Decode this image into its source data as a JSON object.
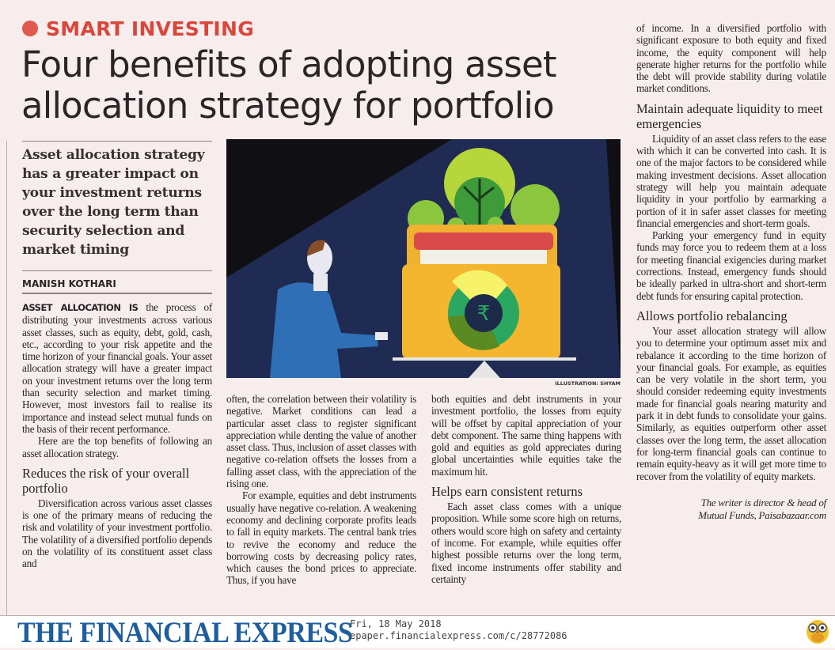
{
  "section": {
    "kicker": "SMART INVESTING",
    "accent_color": "#d9473b"
  },
  "headline": {
    "line1": "Four benefits of adopting asset",
    "line2": "allocation strategy for portfolio"
  },
  "deck": "Asset allocation strategy has a greater impact on your investment returns over the long term than security selection and market timing",
  "author": "MANISH KOTHARI",
  "illustration": {
    "caption": "ILLUSTRATION: SHYAM",
    "icon": "rupee-tree-planter-on-scale"
  },
  "columns": {
    "c1": {
      "lead": "ASSET ALLOCATION IS",
      "p1": " the process of distributing your investments across various asset classes, such as equity, debt, gold, cash, etc., according to your risk appetite and the time horizon of your financial goals. Your asset allocation strategy will have a greater impact on your investment returns over the long term than security selection and market timing. However, most investors fail to realise its importance and instead select mutual funds on the basis of their recent performance.",
      "p2": "Here are the top benefits of following an asset allocation strategy.",
      "h1": "Reduces the risk of your overall portfolio",
      "p3": "Diversification across various asset classes is one of the primary means of reducing the risk and volatility of your investment portfolio. The volatility of a diversified portfolio depends on the volatility of its constituent asset class and"
    },
    "c2": {
      "p1": "often, the correlation between their volatility is negative. Market conditions can lead a particular asset class to register significant appreciation while denting the value of another asset class. Thus, inclusion of asset classes with negative co-relation offsets the losses from a falling asset class, with the appreciation of the rising one.",
      "p2": "For example, equities and debt instruments usually have negative co-relation. A weakening economy and declining corporate profits leads to fall in equity markets. The central bank tries to revive the economy and reduce the borrowing costs by decreasing policy rates, which causes the bond prices to appreciate. Thus, if you have"
    },
    "c3": {
      "p1": "both equities and debt instruments in your investment portfolio, the losses from equity will be offset by capital appreciation of your debt component. The same thing happens with gold and equities as gold appreciates during global uncertainties while equities take the maximum hit.",
      "h1": "Helps earn consistent returns",
      "p2": "Each asset class comes with a unique proposition. While some score high on returns, others would score high on safety and certainty of income. For example, while equities offer highest possible returns over the long term, fixed income instruments offer stability and certainty"
    },
    "c4": {
      "p1": "of income. In a diversified portfolio with significant exposure to both equity and fixed income, the equity component will help generate higher returns for the portfolio while the debt will provide stability during volatile market conditions.",
      "h1": "Maintain adequate liquidity to meet emergencies",
      "p2": "Liquidity of an asset class refers to the ease with which it can be converted into cash. It is one of the major factors to be considered while making investment decisions. Asset allocation strategy will help you maintain adequate liquidity in your portfolio by earmarking a portion of it in safer asset classes for meeting financial emergencies and short-term goals.",
      "p3": "Parking your emergency fund in equity funds may force you to redeem them at a loss for meeting financial exigencies during market corrections. Instead, emergency funds should be ideally parked in ultra-short and short-term debt funds for ensuring capital protection.",
      "h2": "Allows portfolio rebalancing",
      "p4": "Your asset allocation strategy will allow you to determine your optimum asset mix and rebalance it according to the time horizon of your financial goals. For example, as equities can be very volatile in the short term, you should consider redeeming equity investments made for financial goals nearing maturity and park it in debt funds to consolidate your gains. Similarly, as equities outperform other asset classes over the long term, the asset allocation for long-term financial goals can continue to remain equity-heavy as it will get more time to recover from the volatility of equity markets.",
      "byline1": "The writer is director & head of",
      "byline2": "Mutual Funds, Paisabazaar.com"
    }
  },
  "footer": {
    "logo": "THE FINANCIAL EXPRESS",
    "logo_color": "#1f5e9e",
    "date": "Fri, 18 May 2018",
    "url": "epaper.financialexpress.com/c/28772086",
    "mascot_icon": "owl-icon"
  }
}
